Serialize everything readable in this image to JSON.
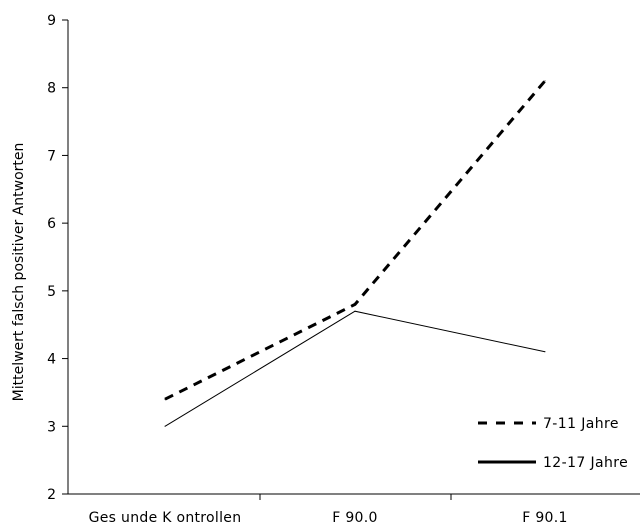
{
  "chart_data": {
    "type": "line",
    "ylabel": "Mittelwert falsch positiver Antworten",
    "xlabel": "",
    "categories": [
      "Ges unde K ontrollen",
      "F 90.0",
      "F 90.1"
    ],
    "ylim": [
      2,
      9
    ],
    "yticks": [
      "2",
      "3",
      "4",
      "5",
      "6",
      "7",
      "8",
      "9"
    ],
    "grid": false,
    "legend_position": "bottom-right",
    "series": [
      {
        "name": "7-11 Jahre",
        "style": "dashed",
        "values": [
          3.4,
          4.8,
          8.1
        ]
      },
      {
        "name": "12-17 Jahre",
        "style": "solid",
        "values": [
          3.0,
          4.7,
          4.1
        ]
      }
    ]
  }
}
